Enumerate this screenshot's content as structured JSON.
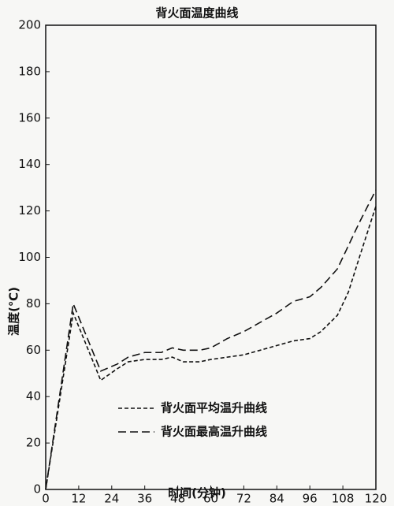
{
  "chart_data": {
    "type": "line",
    "title": "背火面温度曲线",
    "x_label": "时间(分钟)",
    "y_label": "温度(℃)",
    "x": [
      0,
      10,
      20,
      26,
      30,
      36,
      42,
      46,
      50,
      56,
      60,
      66,
      72,
      78,
      84,
      90,
      96,
      100,
      106,
      110,
      114,
      120
    ],
    "series": [
      {
        "name": "背火面平均温升曲线",
        "color": "#111111",
        "values": [
          0,
          76,
          47,
          52,
          55,
          56,
          56,
          57,
          55,
          55,
          56,
          57,
          58,
          60,
          62,
          64,
          65,
          68,
          75,
          85,
          100,
          122
        ]
      },
      {
        "name": "背火面最高温升曲线",
        "color": "#111111",
        "values": [
          0,
          80,
          51,
          54,
          57,
          59,
          59,
          61,
          60,
          60,
          61,
          65,
          68,
          72,
          76,
          81,
          83,
          87,
          95,
          105,
          115,
          129
        ]
      }
    ],
    "xlim": [
      0,
      120
    ],
    "xticks": [
      0,
      12,
      24,
      36,
      48,
      60,
      72,
      84,
      96,
      108,
      120
    ],
    "ylim": [
      0,
      200
    ],
    "yticks": [
      0,
      20,
      40,
      60,
      80,
      100,
      120,
      140,
      160,
      180,
      200
    ],
    "grid": false,
    "legend": "lower center"
  }
}
